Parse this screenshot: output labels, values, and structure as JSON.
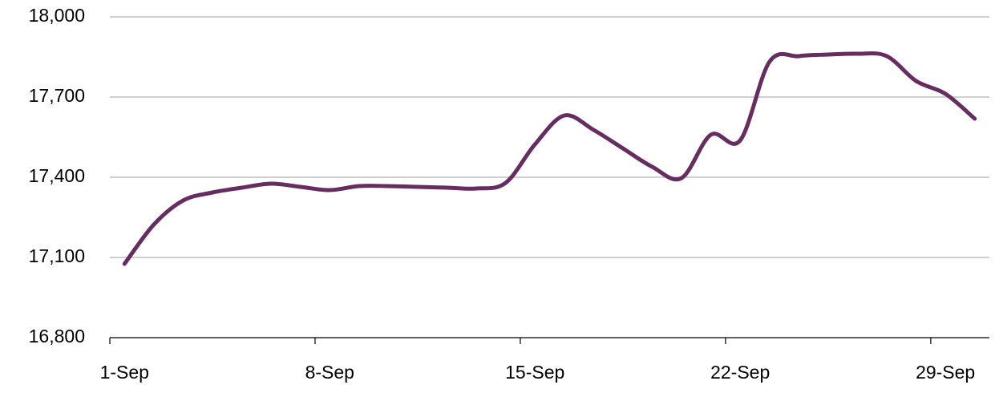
{
  "chart_data": {
    "type": "line",
    "categories": [
      "1-Sep",
      null,
      null,
      null,
      null,
      null,
      null,
      "8-Sep",
      null,
      null,
      null,
      null,
      null,
      null,
      "15-Sep",
      null,
      null,
      null,
      null,
      null,
      null,
      "22-Sep",
      null,
      null,
      null,
      null,
      null,
      null,
      "29-Sep",
      null
    ],
    "series": [
      {
        "color": "#662d61",
        "values": [
          17076,
          17223,
          17313,
          17343,
          17361,
          17376,
          17364,
          17352,
          17367,
          17367,
          17364,
          17361,
          17358,
          17379,
          17523,
          17631,
          17577,
          17508,
          17439,
          17397,
          17559,
          17538,
          17832,
          17853,
          17859,
          17862,
          17853,
          17760,
          17712,
          17619
        ]
      }
    ],
    "ylim": [
      16800,
      18000
    ],
    "yticks": [
      {
        "value": 16800,
        "label": "16,800"
      },
      {
        "value": 17100,
        "label": "17,100"
      },
      {
        "value": 17400,
        "label": "17,400"
      },
      {
        "value": 17700,
        "label": "17,700"
      },
      {
        "value": 18000,
        "label": "18,000"
      }
    ],
    "grid": true
  }
}
